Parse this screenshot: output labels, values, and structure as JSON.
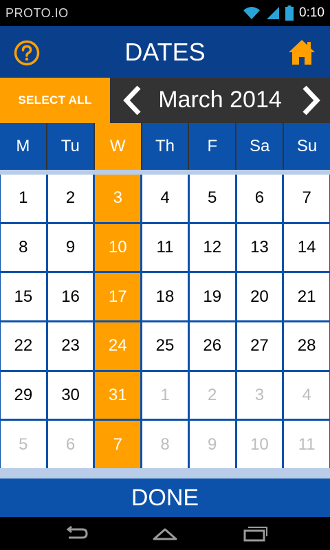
{
  "status_bar": {
    "carrier": "PROTO.IO",
    "time": "0:10"
  },
  "header": {
    "title": "DATES",
    "help_icon": "question-circle-icon",
    "home_icon": "home-icon"
  },
  "month_bar": {
    "select_all": "SELECT ALL",
    "month": "March 2014"
  },
  "weekdays": [
    {
      "label": "M",
      "selected": false
    },
    {
      "label": "Tu",
      "selected": false
    },
    {
      "label": "W",
      "selected": true
    },
    {
      "label": "Th",
      "selected": false
    },
    {
      "label": "F",
      "selected": false
    },
    {
      "label": "Sa",
      "selected": false
    },
    {
      "label": "Su",
      "selected": false
    }
  ],
  "days": [
    {
      "n": "1",
      "in": true
    },
    {
      "n": "2",
      "in": true
    },
    {
      "n": "3",
      "in": true
    },
    {
      "n": "4",
      "in": true
    },
    {
      "n": "5",
      "in": true
    },
    {
      "n": "6",
      "in": true
    },
    {
      "n": "7",
      "in": true
    },
    {
      "n": "8",
      "in": true
    },
    {
      "n": "9",
      "in": true
    },
    {
      "n": "10",
      "in": true
    },
    {
      "n": "11",
      "in": true
    },
    {
      "n": "12",
      "in": true
    },
    {
      "n": "13",
      "in": true
    },
    {
      "n": "14",
      "in": true
    },
    {
      "n": "15",
      "in": true
    },
    {
      "n": "16",
      "in": true
    },
    {
      "n": "17",
      "in": true
    },
    {
      "n": "18",
      "in": true
    },
    {
      "n": "19",
      "in": true
    },
    {
      "n": "20",
      "in": true
    },
    {
      "n": "21",
      "in": true
    },
    {
      "n": "22",
      "in": true
    },
    {
      "n": "23",
      "in": true
    },
    {
      "n": "24",
      "in": true
    },
    {
      "n": "25",
      "in": true
    },
    {
      "n": "26",
      "in": true
    },
    {
      "n": "27",
      "in": true
    },
    {
      "n": "28",
      "in": true
    },
    {
      "n": "29",
      "in": true
    },
    {
      "n": "30",
      "in": true
    },
    {
      "n": "31",
      "in": true
    },
    {
      "n": "1",
      "in": false
    },
    {
      "n": "2",
      "in": false
    },
    {
      "n": "3",
      "in": false
    },
    {
      "n": "4",
      "in": false
    },
    {
      "n": "5",
      "in": false
    },
    {
      "n": "6",
      "in": false
    },
    {
      "n": "7",
      "in": false
    },
    {
      "n": "8",
      "in": false
    },
    {
      "n": "9",
      "in": false
    },
    {
      "n": "10",
      "in": false
    },
    {
      "n": "11",
      "in": false
    }
  ],
  "done_label": "DONE",
  "colors": {
    "accent": "#ffa000",
    "primary": "#0c52aa",
    "header": "#0a3f8c"
  }
}
